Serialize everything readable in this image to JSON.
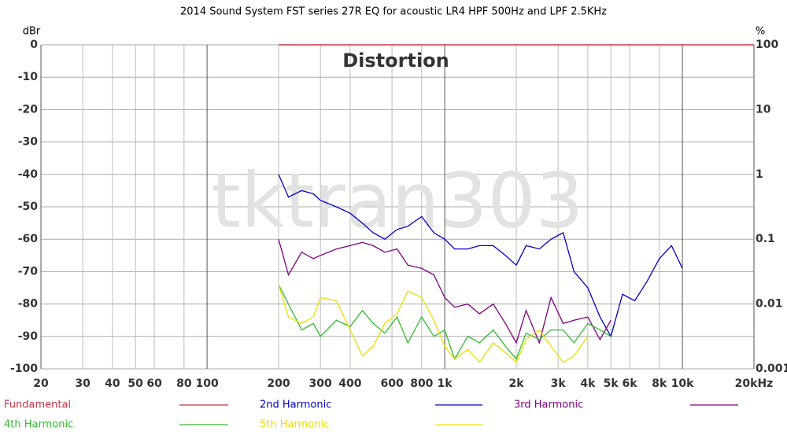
{
  "chart_data": {
    "type": "line",
    "title": "2014 Sound System FST series 27R EQ for acoustic LR4 HPF 500Hz and LPF 2.5KHz",
    "annotation": "Distortion",
    "watermark": "tktran303",
    "y_label": "dBr",
    "y2_label": "%",
    "x_log": true,
    "y2_log": true,
    "grid": true,
    "xlim": [
      20,
      20000
    ],
    "ylim": [
      -100,
      0
    ],
    "y2lim": [
      0.001,
      100
    ],
    "xticks": [
      20,
      30,
      40,
      50,
      60,
      80,
      100,
      200,
      300,
      400,
      600,
      800,
      {
        "value": 1000,
        "label": "1k"
      },
      {
        "value": 2000,
        "label": "2k"
      },
      {
        "value": 3000,
        "label": "3k"
      },
      {
        "value": 4000,
        "label": "4k"
      },
      {
        "value": 5000,
        "label": "5k"
      },
      {
        "value": 6000,
        "label": "6k"
      },
      {
        "value": 8000,
        "label": "8k"
      },
      {
        "value": 10000,
        "label": "10k"
      },
      {
        "value": 20000,
        "label": "20kHz"
      }
    ],
    "yticks": [
      0,
      -10,
      -20,
      -30,
      -40,
      -50,
      -60,
      -70,
      -80,
      -90,
      -100
    ],
    "y2ticks": [
      100,
      10,
      1,
      0.1,
      0.01,
      0.001
    ],
    "x": [
      200,
      220,
      250,
      280,
      300,
      350,
      400,
      450,
      500,
      560,
      630,
      700,
      800,
      900,
      1000,
      1100,
      1250,
      1400,
      1600,
      1800,
      2000,
      2200,
      2500,
      2800,
      3150,
      3500,
      4000,
      4500,
      5000,
      5600,
      6300,
      7100,
      8000,
      9000,
      10000,
      20000
    ],
    "series": [
      {
        "name": "Fundamental",
        "color": "#cc3344",
        "values": [
          0,
          null,
          null,
          null,
          null,
          null,
          null,
          null,
          null,
          null,
          null,
          null,
          null,
          null,
          null,
          null,
          null,
          null,
          null,
          null,
          null,
          null,
          null,
          null,
          null,
          null,
          null,
          null,
          null,
          null,
          null,
          null,
          null,
          null,
          null,
          0
        ]
      },
      {
        "name": "2nd Harmonic",
        "color": "#0000cc",
        "values": [
          -40,
          -47,
          -45,
          -46,
          -48,
          -50,
          -52,
          -55,
          -58,
          -60,
          -57,
          -56,
          -53,
          -58,
          -60,
          -63,
          -63,
          -62,
          -62,
          -65,
          -68,
          -62,
          -63,
          -60,
          -58,
          -70,
          -75,
          -84,
          -90,
          -77,
          -79,
          -73,
          -66,
          -62,
          -69,
          null
        ]
      },
      {
        "name": "3rd Harmonic",
        "color": "#800080",
        "values": [
          -60,
          -71,
          -64,
          -66,
          -65,
          -63,
          -62,
          -61,
          -62,
          -64,
          -63,
          -68,
          -69,
          -71,
          -78,
          -81,
          -80,
          -83,
          -80,
          -86,
          -92,
          -82,
          -92,
          -78,
          -86,
          -85,
          -84,
          -91,
          -85,
          null,
          null,
          null,
          null,
          null,
          null,
          null
        ]
      },
      {
        "name": "4th Harmonic",
        "color": "#33bb33",
        "values": [
          -74,
          -80,
          -88,
          -86,
          -90,
          -85,
          -87,
          -82,
          -86,
          -89,
          -84,
          -92,
          -84,
          -90,
          -88,
          -97,
          -90,
          -92,
          -88,
          -93,
          -97,
          -89,
          -91,
          -88,
          -88,
          -92,
          -86,
          -88,
          -90,
          null,
          null,
          null,
          null,
          null,
          null,
          null
        ]
      },
      {
        "name": "5th Harmonic",
        "color": "#eedd00",
        "values": [
          -74,
          -84,
          -86,
          -84,
          -78,
          -79,
          -88,
          -96,
          -93,
          -86,
          -83,
          -76,
          -78,
          -85,
          -93,
          -97,
          -94,
          -98,
          -92,
          -95,
          -98,
          -91,
          -88,
          -93,
          -98,
          -96,
          -90,
          null,
          null,
          null,
          null,
          null,
          null,
          null,
          null,
          null
        ]
      }
    ]
  }
}
